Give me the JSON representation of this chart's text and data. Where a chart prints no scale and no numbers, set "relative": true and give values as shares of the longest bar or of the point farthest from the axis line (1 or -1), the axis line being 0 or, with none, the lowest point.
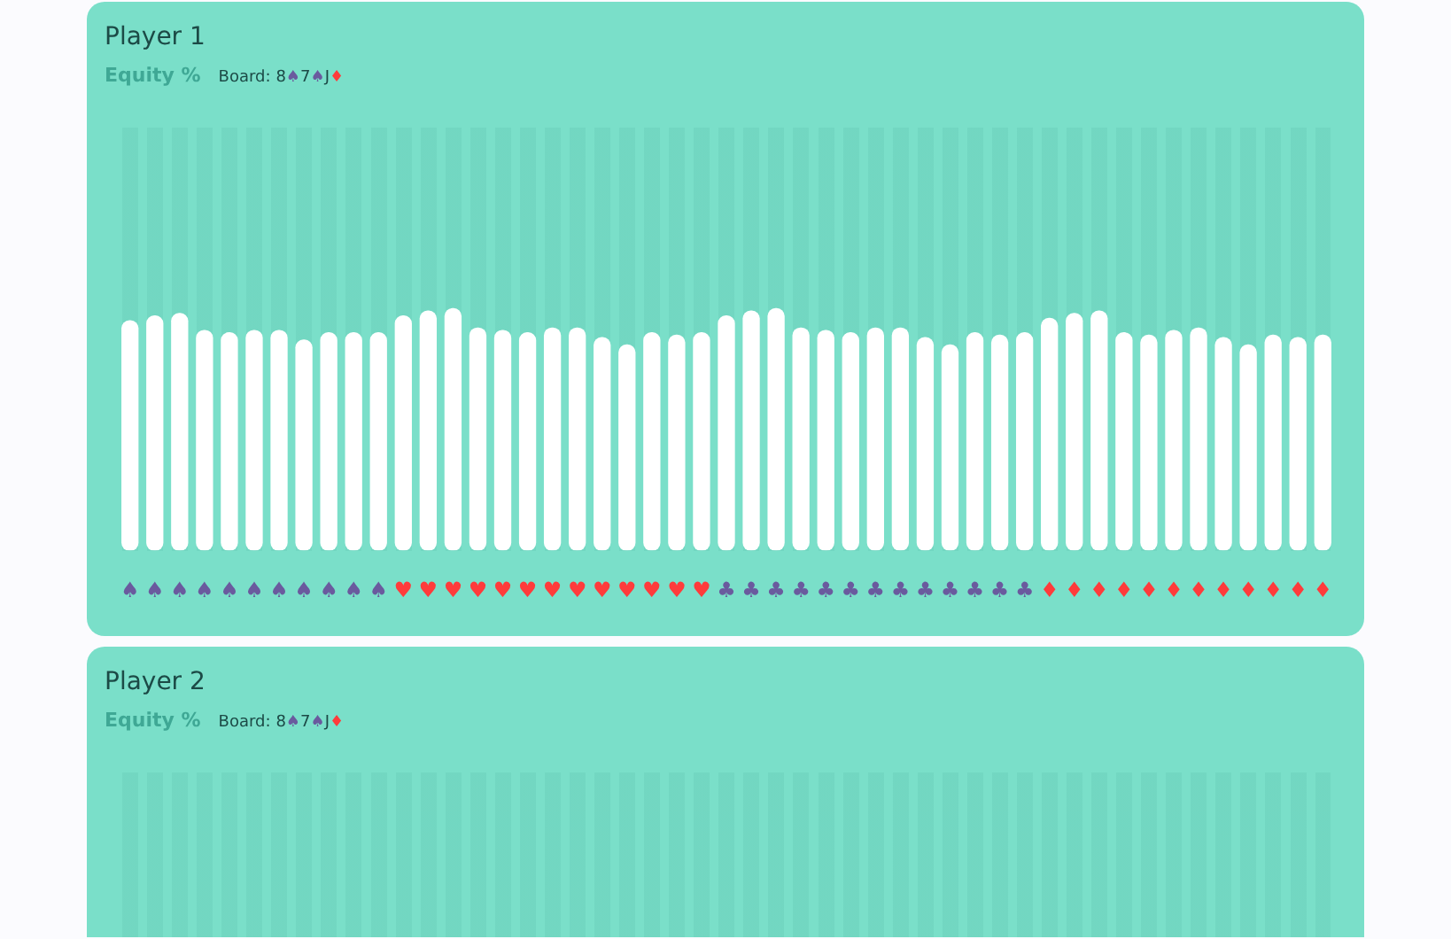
{
  "chart_data": [
    {
      "type": "bar",
      "title": "Player 1",
      "subtitle": "Equity %",
      "annotations": [
        "Board: 8♠7♠J♦"
      ],
      "relative": true,
      "color": "#ffffff",
      "legend": false,
      "grid": false,
      "categories": [
        "♠",
        "♠",
        "♠",
        "♠",
        "♠",
        "♠",
        "♠",
        "♠",
        "♠",
        "♠",
        "♠",
        "♥",
        "♥",
        "♥",
        "♥",
        "♥",
        "♥",
        "♥",
        "♥",
        "♥",
        "♥",
        "♥",
        "♥",
        "♥",
        "♣",
        "♣",
        "♣",
        "♣",
        "♣",
        "♣",
        "♣",
        "♣",
        "♣",
        "♣",
        "♣",
        "♣",
        "♣",
        "♦",
        "♦",
        "♦",
        "♦",
        "♦",
        "♦",
        "♦",
        "♦",
        "♦",
        "♦",
        "♦",
        "♦"
      ],
      "values": [
        0.95,
        0.97,
        0.98,
        0.91,
        0.9,
        0.91,
        0.91,
        0.87,
        0.9,
        0.9,
        0.9,
        0.97,
        0.99,
        1,
        0.92,
        0.91,
        0.9,
        0.92,
        0.92,
        0.88,
        0.85,
        0.9,
        0.89,
        0.9,
        0.97,
        0.99,
        1,
        0.92,
        0.91,
        0.9,
        0.92,
        0.92,
        0.88,
        0.85,
        0.9,
        0.89,
        0.9,
        0.96,
        0.98,
        0.99,
        0.9,
        0.89,
        0.91,
        0.92,
        0.88,
        0.85,
        0.89,
        0.88,
        0.89
      ]
    },
    {
      "type": "other",
      "title": "Player 2",
      "subtitle": "Equity %",
      "annotations": [
        "Board: 8♠7♠J♦"
      ]
    }
  ]
}
